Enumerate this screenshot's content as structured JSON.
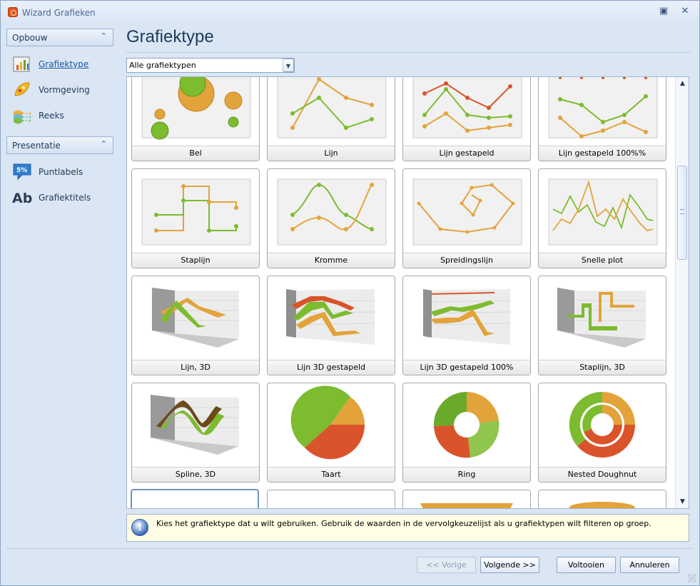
{
  "window": {
    "title": "Wizard Grafieken"
  },
  "sidebar": {
    "groups": [
      {
        "label": "Opbouw",
        "items": [
          {
            "label": "Grafiektype",
            "icon": "chart-type-icon"
          },
          {
            "label": "Vormgeving",
            "icon": "appearance-icon"
          },
          {
            "label": "Reeks",
            "icon": "series-icon"
          }
        ]
      },
      {
        "label": "Presentatie",
        "items": [
          {
            "label": "Puntlabels",
            "icon": "point-labels-icon",
            "badge": "5%"
          },
          {
            "label": "Grafiektitels",
            "icon": "chart-titles-icon",
            "glyph": "Ab"
          }
        ]
      }
    ]
  },
  "page": {
    "title": "Grafiektype"
  },
  "filter": {
    "value": "Alle grafiektypen"
  },
  "gallery": {
    "items": [
      "Bel",
      "Lijn",
      "Lijn gestapeld",
      "Lijn gestapeld 100%%",
      "Staplijn",
      "Kromme",
      "Spreidingslijn",
      "Snelle plot",
      "Lijn, 3D",
      "Lijn 3D gestapeld",
      "Lijn 3D gestapeld 100%",
      "Staplijn, 3D",
      "Spline, 3D",
      "Taart",
      "Ring",
      "Nested Doughnut"
    ]
  },
  "hint": {
    "text": "Kies het grafiektype dat u wilt gebruiken. Gebruik de waarden in de vervolgkeuzelijst als u grafiektypen wilt filteren op groep."
  },
  "buttons": {
    "prev": "<< Vorige",
    "next": "Volgende >>",
    "finish": "Voltooien",
    "cancel": "Annuleren"
  },
  "colors": {
    "green": "#7dbb2f",
    "orange": "#e3a33b",
    "red": "#d9542b",
    "accent": "#1b57a6"
  }
}
